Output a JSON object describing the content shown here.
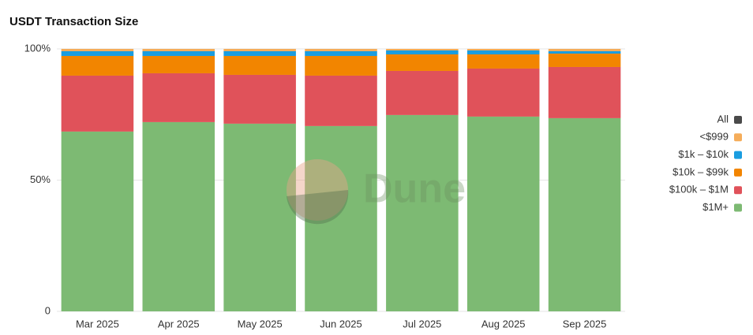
{
  "chart_data": {
    "type": "stacked_bar_100",
    "title": "USDT Transaction Size",
    "categories": [
      "Mar 2025",
      "Apr 2025",
      "May 2025",
      "Jun 2025",
      "Jul 2025",
      "Aug 2025",
      "Sep 2025"
    ],
    "series": [
      {
        "name": "<$999",
        "color": "#f5ad5a",
        "values": [
          0.9,
          0.9,
          0.9,
          0.9,
          0.6,
          0.6,
          0.9
        ]
      },
      {
        "name": "$1k – $10k",
        "color": "#1a9de0",
        "values": [
          1.8,
          1.8,
          1.8,
          1.8,
          1.5,
          1.5,
          0.9
        ]
      },
      {
        "name": "$10k – $99k",
        "color": "#f28500",
        "values": [
          7.5,
          6.6,
          7.2,
          7.5,
          6.3,
          5.4,
          5.1
        ]
      },
      {
        "name": "$100k – $1M",
        "color": "#e0525a",
        "values": [
          21.3,
          18.6,
          18.6,
          19.2,
          16.8,
          18.3,
          19.5
        ]
      },
      {
        "name": "$1M+",
        "color": "#7dba73",
        "values": [
          68.5,
          72.1,
          71.5,
          70.6,
          74.8,
          74.2,
          73.6
        ]
      }
    ],
    "legend_toggle": {
      "label": "All",
      "color": "#4a4a4a"
    },
    "watermark": "Dune",
    "ylim": [
      0,
      100
    ],
    "yticks": [
      0,
      {
        "value": 50,
        "label": "50%"
      },
      {
        "value": 100,
        "label": "100%"
      }
    ],
    "grid": true,
    "legend": "right"
  }
}
